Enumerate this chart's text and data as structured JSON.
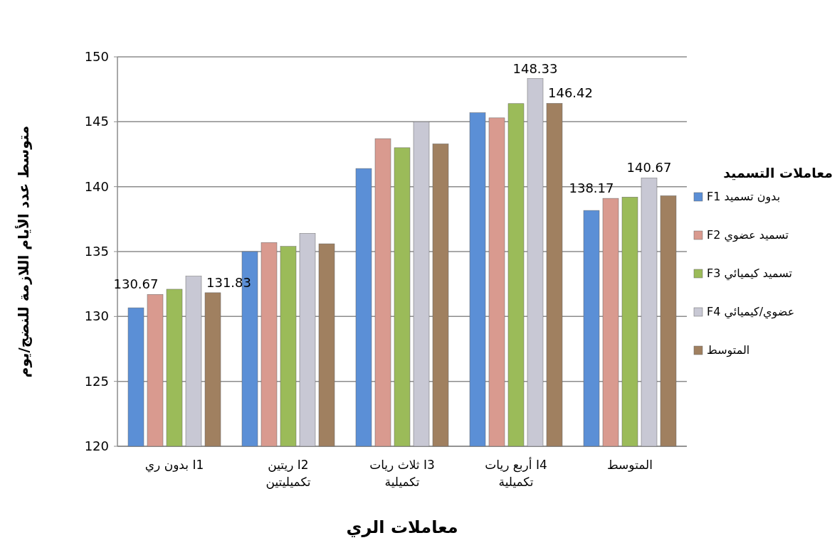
{
  "chart_data": {
    "type": "bar",
    "categories": [
      "بدون ري I1",
      "ريتين I2 تكميليتين",
      "ثلاث ريات I3 تكميلية",
      "أربع ريات I4 تكميلية",
      "المتوسط"
    ],
    "series": [
      {
        "name": "بدون تسميد F1",
        "color": "#5b8fd6",
        "values": [
          130.67,
          135.0,
          141.4,
          145.7,
          138.17
        ],
        "value_labels": [
          "130.67",
          null,
          null,
          null,
          "138.17"
        ]
      },
      {
        "name": "تسميد عضوي F2",
        "color": "#d99a8f",
        "values": [
          131.7,
          135.7,
          143.7,
          145.3,
          139.1
        ]
      },
      {
        "name": "تسميد كيميائي F3",
        "color": "#9bbb59",
        "values": [
          132.1,
          135.4,
          143.0,
          146.4,
          139.2
        ]
      },
      {
        "name": "عضوي/كيميائي F4",
        "color": "#c8c8d4",
        "values": [
          133.1,
          136.4,
          145.0,
          148.33,
          140.67
        ],
        "value_labels": [
          null,
          null,
          null,
          "148.33",
          "140.67"
        ]
      },
      {
        "name": "المتوسط",
        "color": "#a08060",
        "values": [
          131.83,
          135.6,
          143.3,
          146.42,
          139.3
        ],
        "value_labels": [
          "131.83",
          null,
          null,
          "146.42",
          null
        ]
      }
    ],
    "xlabel": "معاملات الري",
    "ylabel": "متوسط عدد الأيام اللازمة للنضج/يوم",
    "legend_title": "معاملات التسميد",
    "legend": "right",
    "ylim": [
      120,
      150
    ],
    "yticks": [
      120,
      125,
      130,
      135,
      140,
      145,
      150
    ],
    "grid": "y"
  }
}
